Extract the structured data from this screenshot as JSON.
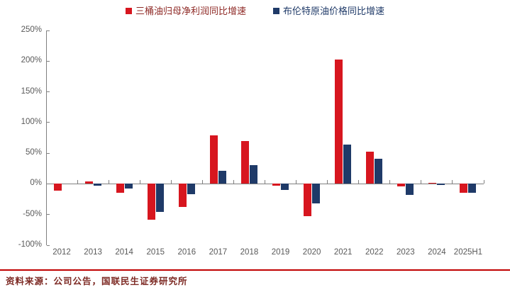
{
  "chart_data": {
    "type": "bar",
    "title": "",
    "xlabel": "",
    "ylabel": "",
    "grid": false,
    "legend_position": "top",
    "categories": [
      "2012",
      "2013",
      "2014",
      "2015",
      "2016",
      "2017",
      "2018",
      "2019",
      "2020",
      "2021",
      "2022",
      "2023",
      "2024",
      "2025H1"
    ],
    "series": [
      {
        "name": "三桶油归母净利润同比增速",
        "color": "#d7161f",
        "label_color": "#8f2a26",
        "values": [
          -11,
          4,
          -15,
          -58,
          -38,
          79,
          70,
          -3,
          -53,
          203,
          53,
          -4,
          2,
          -14
        ]
      },
      {
        "name": "布伦特原油价格同比增速",
        "color": "#1f3a68",
        "label_color": "#1f3a68",
        "values": [
          0,
          -3,
          -8,
          -46,
          -17,
          21,
          31,
          -10,
          -32,
          64,
          41,
          -18,
          -2,
          -15
        ]
      }
    ],
    "ylim": [
      -100,
      250
    ],
    "yticks": [
      {
        "value": 250,
        "label": "250%"
      },
      {
        "value": 200,
        "label": "200%"
      },
      {
        "value": 150,
        "label": "150%"
      },
      {
        "value": 100,
        "label": "100%"
      },
      {
        "value": 50,
        "label": "50%"
      },
      {
        "value": 0,
        "label": "0%"
      },
      {
        "value": -50,
        "label": "-50%"
      },
      {
        "value": -100,
        "label": "-100%"
      }
    ]
  },
  "footer": {
    "source_note": "资料来源：公司公告，国联民生证券研究所"
  },
  "colors": {
    "accent_red": "#d7161f",
    "accent_navy": "#1f3a68",
    "separator_red": "#c00000",
    "axis_line": "#808080",
    "axis_text": "#595959",
    "source_text": "#7d2a24"
  }
}
